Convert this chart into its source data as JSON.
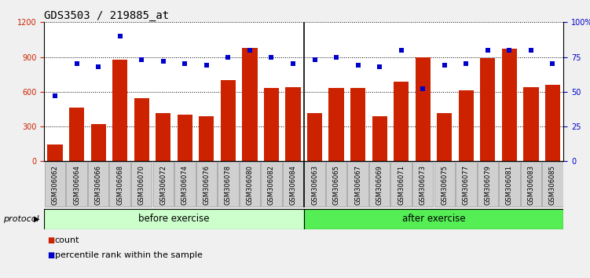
{
  "title": "GDS3503 / 219885_at",
  "samples": [
    "GSM306062",
    "GSM306064",
    "GSM306066",
    "GSM306068",
    "GSM306070",
    "GSM306072",
    "GSM306074",
    "GSM306076",
    "GSM306078",
    "GSM306080",
    "GSM306082",
    "GSM306084",
    "GSM306063",
    "GSM306065",
    "GSM306067",
    "GSM306069",
    "GSM306071",
    "GSM306073",
    "GSM306075",
    "GSM306077",
    "GSM306079",
    "GSM306081",
    "GSM306083",
    "GSM306085"
  ],
  "counts": [
    145,
    465,
    320,
    880,
    545,
    415,
    400,
    390,
    700,
    980,
    630,
    640,
    415,
    630,
    630,
    390,
    690,
    900,
    415,
    615,
    890,
    975,
    640,
    660
  ],
  "percentiles": [
    47,
    70,
    68,
    90,
    73,
    72,
    70,
    69,
    75,
    80,
    75,
    70,
    73,
    75,
    69,
    68,
    80,
    52,
    69,
    70,
    80,
    80,
    80,
    70
  ],
  "before_exercise_count": 12,
  "after_exercise_count": 12,
  "bar_color": "#cc2200",
  "percentile_color": "#0000cc",
  "left_ylim": [
    0,
    1200
  ],
  "right_ylim": [
    0,
    100
  ],
  "left_yticks": [
    0,
    300,
    600,
    900,
    1200
  ],
  "right_yticks": [
    0,
    25,
    50,
    75,
    100
  ],
  "protocol_label": "protocol",
  "before_label": "before exercise",
  "after_label": "after exercise",
  "before_color": "#ccffcc",
  "after_color": "#55ee55",
  "legend_count": "count",
  "legend_percentile": "percentile rank within the sample",
  "background_color": "#f0f0f0",
  "plot_bg": "#ffffff",
  "tick_label_bg": "#d0d0d0",
  "title_fontsize": 10,
  "tick_fontsize": 7,
  "bar_width": 0.7
}
